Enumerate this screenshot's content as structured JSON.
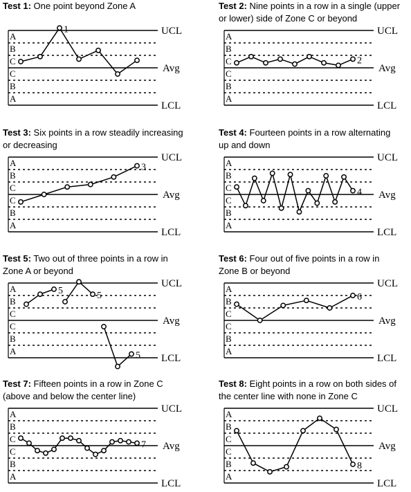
{
  "labels": {
    "ucl": "UCL",
    "avg": "Avg",
    "lcl": "LCL",
    "zones": [
      "A",
      "B",
      "C",
      "C",
      "B",
      "A"
    ]
  },
  "tests": [
    {
      "title_bold": "Test 1:",
      "title_lines": [
        "One point beyond Zone A"
      ],
      "segments": [
        [
          0.5,
          0.9,
          3.2,
          0.7,
          1.4,
          -0.5,
          0.6
        ]
      ],
      "callouts": [
        {
          "text": "1",
          "index": 2
        }
      ]
    },
    {
      "title_bold": "Test 2:",
      "title_lines": [
        "Nine points in a row in a single (upper",
        "or lower) side of Zone C or beyond"
      ],
      "segments": [
        [
          0.4,
          0.9,
          0.4,
          0.7,
          0.3,
          0.9,
          0.4,
          0.2,
          0.7
        ]
      ],
      "callouts": [
        {
          "text": "2",
          "index": 8
        }
      ]
    },
    {
      "title_bold": "Test 3:",
      "title_lines": [
        "Six points in a row steadily increasing",
        "or decreasing"
      ],
      "segments": [
        [
          -0.6,
          0,
          0.6,
          0.8,
          1.4,
          2.3
        ]
      ],
      "callouts": [
        {
          "text": "3",
          "index": 5
        }
      ]
    },
    {
      "title_bold": "Test 4:",
      "title_lines": [
        "Fourteen points in a row alternating",
        "up and down"
      ],
      "segments": [
        [
          0.6,
          -0.9,
          1.3,
          -0.5,
          1.7,
          -1.1,
          1.6,
          -1.4,
          0.3,
          -0.7,
          1.5,
          -0.6,
          1.4,
          0.3
        ]
      ],
      "callouts": [
        {
          "text": "4",
          "index": 13
        }
      ]
    },
    {
      "title_bold": "Test 5:",
      "title_lines": [
        "Two out of three points in a row in",
        "Zone A or beyond"
      ],
      "segments": [
        [
          1.3,
          2.1,
          2.5
        ],
        [
          1.5,
          3.1,
          2.1
        ],
        [
          -0.5,
          -3.7,
          -2.7
        ]
      ],
      "callouts": [
        {
          "text": "5",
          "segment": 0,
          "index": 2
        },
        {
          "text": "5",
          "segment": 1,
          "index": 2
        },
        {
          "text": "5",
          "segment": 2,
          "index": 2
        }
      ]
    },
    {
      "title_bold": "Test 6:",
      "title_lines": [
        "Four out of five points in a row in",
        "Zone B or beyond"
      ],
      "segments": [
        [
          1.3,
          0,
          1.2,
          1.6,
          1.0,
          2.0
        ]
      ],
      "callouts": [
        {
          "text": "6",
          "index": 5
        }
      ]
    },
    {
      "title_bold": "Test 7:",
      "title_lines": [
        "Fifteen points in a row in Zone C",
        "(above and below the center line)"
      ],
      "segments": [
        [
          0.6,
          0.2,
          -0.4,
          -0.6,
          -0.3,
          0.6,
          0.6,
          0.4,
          -0.2,
          -0.7,
          -0.4,
          0.3,
          0.4,
          0.3,
          0.2
        ]
      ],
      "callouts": [
        {
          "text": "7",
          "index": 14
        }
      ]
    },
    {
      "title_bold": "Test 8:",
      "title_lines": [
        "Eight points in a row on both sides of",
        "the center line with none in Zone C"
      ],
      "segments": [
        [
          1.2,
          -1.4,
          -2.1,
          -1.7,
          1.2,
          2.2,
          1.3,
          -1.5
        ]
      ],
      "callouts": [
        {
          "text": "8",
          "index": 7
        }
      ]
    }
  ]
}
